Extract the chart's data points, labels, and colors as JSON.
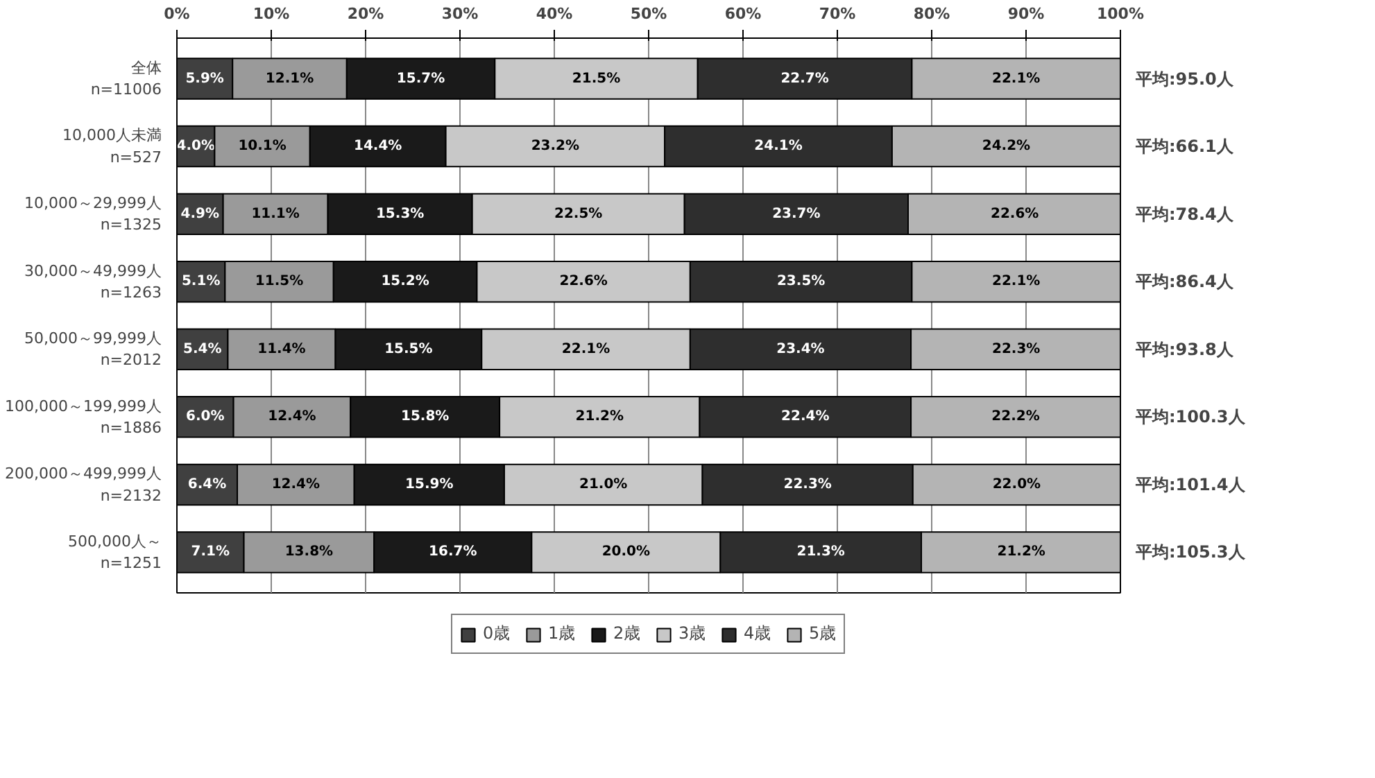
{
  "chart_data": {
    "type": "bar",
    "orientation": "horizontal",
    "stacked": true,
    "categories": [
      "全体\nn=11006",
      "10,000人未満\nn=527",
      "10,000～29,999人\nn=1325",
      "30,000～49,999人\nn=1263",
      "50,000～99,999人\nn=2012",
      "100,000～199,999人\nn=1886",
      "200,000～499,999人\nn=2132",
      "500,000人～\nn=1251"
    ],
    "series": [
      {
        "name": "0歳",
        "color": "#404040",
        "values": [
          5.9,
          4.0,
          4.9,
          5.1,
          5.4,
          6.0,
          6.4,
          7.1
        ],
        "value_labels": [
          "5.9%",
          "4.0%",
          "4.9%",
          "5.1%",
          "5.4%",
          "6.0%",
          "6.4%",
          "7.1%"
        ]
      },
      {
        "name": "1歳",
        "color": "#9a9a9a",
        "values": [
          12.1,
          10.1,
          11.1,
          11.5,
          11.4,
          12.4,
          12.4,
          13.8
        ],
        "value_labels": [
          "12.1%",
          "10.1%",
          "11.1%",
          "11.5%",
          "11.4%",
          "12.4%",
          "12.4%",
          "13.8%"
        ]
      },
      {
        "name": "2歳",
        "color": "#1a1a1a",
        "values": [
          15.7,
          14.4,
          15.3,
          15.2,
          15.5,
          15.8,
          15.9,
          16.7
        ],
        "value_labels": [
          "15.7%",
          "14.4%",
          "15.3%",
          "15.2%",
          "15.5%",
          "15.8%",
          "15.9%",
          "16.7%"
        ]
      },
      {
        "name": "3歳",
        "color": "#c8c8c8",
        "values": [
          21.5,
          23.2,
          22.5,
          22.6,
          22.1,
          21.2,
          21.0,
          20.0
        ],
        "value_labels": [
          "21.5%",
          "23.2%",
          "22.5%",
          "22.6%",
          "22.1%",
          "21.2%",
          "21.0%",
          "20.0%"
        ]
      },
      {
        "name": "4歳",
        "color": "#2e2e2e",
        "values": [
          22.7,
          24.1,
          23.7,
          23.5,
          23.4,
          22.4,
          22.3,
          21.3
        ],
        "value_labels": [
          "22.7%",
          "24.1%",
          "23.7%",
          "23.5%",
          "23.4%",
          "22.4%",
          "22.3%",
          "21.3%"
        ]
      },
      {
        "name": "5歳",
        "color": "#b4b4b4",
        "values": [
          22.1,
          24.2,
          22.6,
          22.1,
          22.3,
          22.2,
          22.0,
          21.2
        ],
        "value_labels": [
          "22.1%",
          "24.2%",
          "22.6%",
          "22.1%",
          "22.3%",
          "22.2%",
          "22.0%",
          "21.2%"
        ]
      }
    ],
    "xlim": [
      0,
      100
    ],
    "xticks": [
      {
        "value": 0,
        "label": "0%"
      },
      {
        "value": 10,
        "label": "10%"
      },
      {
        "value": 20,
        "label": "20%"
      },
      {
        "value": 30,
        "label": "30%"
      },
      {
        "value": 40,
        "label": "40%"
      },
      {
        "value": 50,
        "label": "50%"
      },
      {
        "value": 60,
        "label": "60%"
      },
      {
        "value": 70,
        "label": "70%"
      },
      {
        "value": 80,
        "label": "80%"
      },
      {
        "value": 90,
        "label": "90%"
      },
      {
        "value": 100,
        "label": "100%"
      }
    ],
    "annotations": [
      "平均:95.0人",
      "平均:66.1人",
      "平均:78.4人",
      "平均:86.4人",
      "平均:93.8人",
      "平均:100.3人",
      "平均:101.4人",
      "平均:105.3人"
    ],
    "legend": "bottom",
    "grid": "x"
  }
}
